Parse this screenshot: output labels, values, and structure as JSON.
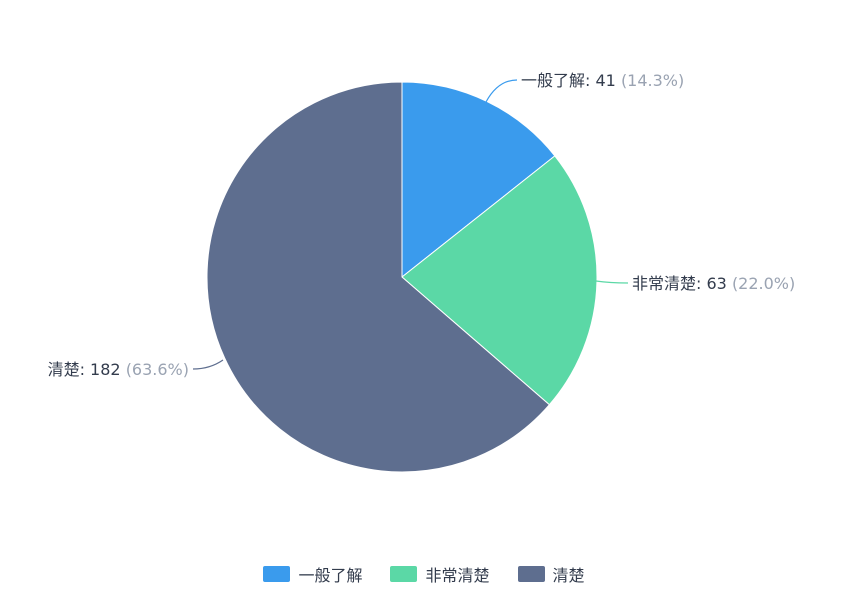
{
  "chart_data": {
    "type": "pie",
    "categories": [
      "一般了解",
      "非常清楚",
      "清楚"
    ],
    "values": [
      41,
      63,
      182
    ],
    "percentages": [
      "14.3%",
      "22.0%",
      "63.6%"
    ],
    "colors": [
      "#3a9bed",
      "#5bd8a6",
      "#5e6e8f"
    ],
    "labels": [
      {
        "name": "一般了解",
        "value": "41",
        "pct": "(14.3%)"
      },
      {
        "name": "非常清楚",
        "value": "63",
        "pct": "(22.0%)"
      },
      {
        "name": "清楚",
        "value": "182",
        "pct": "(63.6%)"
      }
    ],
    "legend_position": "bottom-center"
  },
  "legend": {
    "items": [
      {
        "label": "一般了解",
        "color": "#3a9bed"
      },
      {
        "label": "非常清楚",
        "color": "#5bd8a6"
      },
      {
        "label": "清楚",
        "color": "#5e6e8f"
      }
    ]
  }
}
